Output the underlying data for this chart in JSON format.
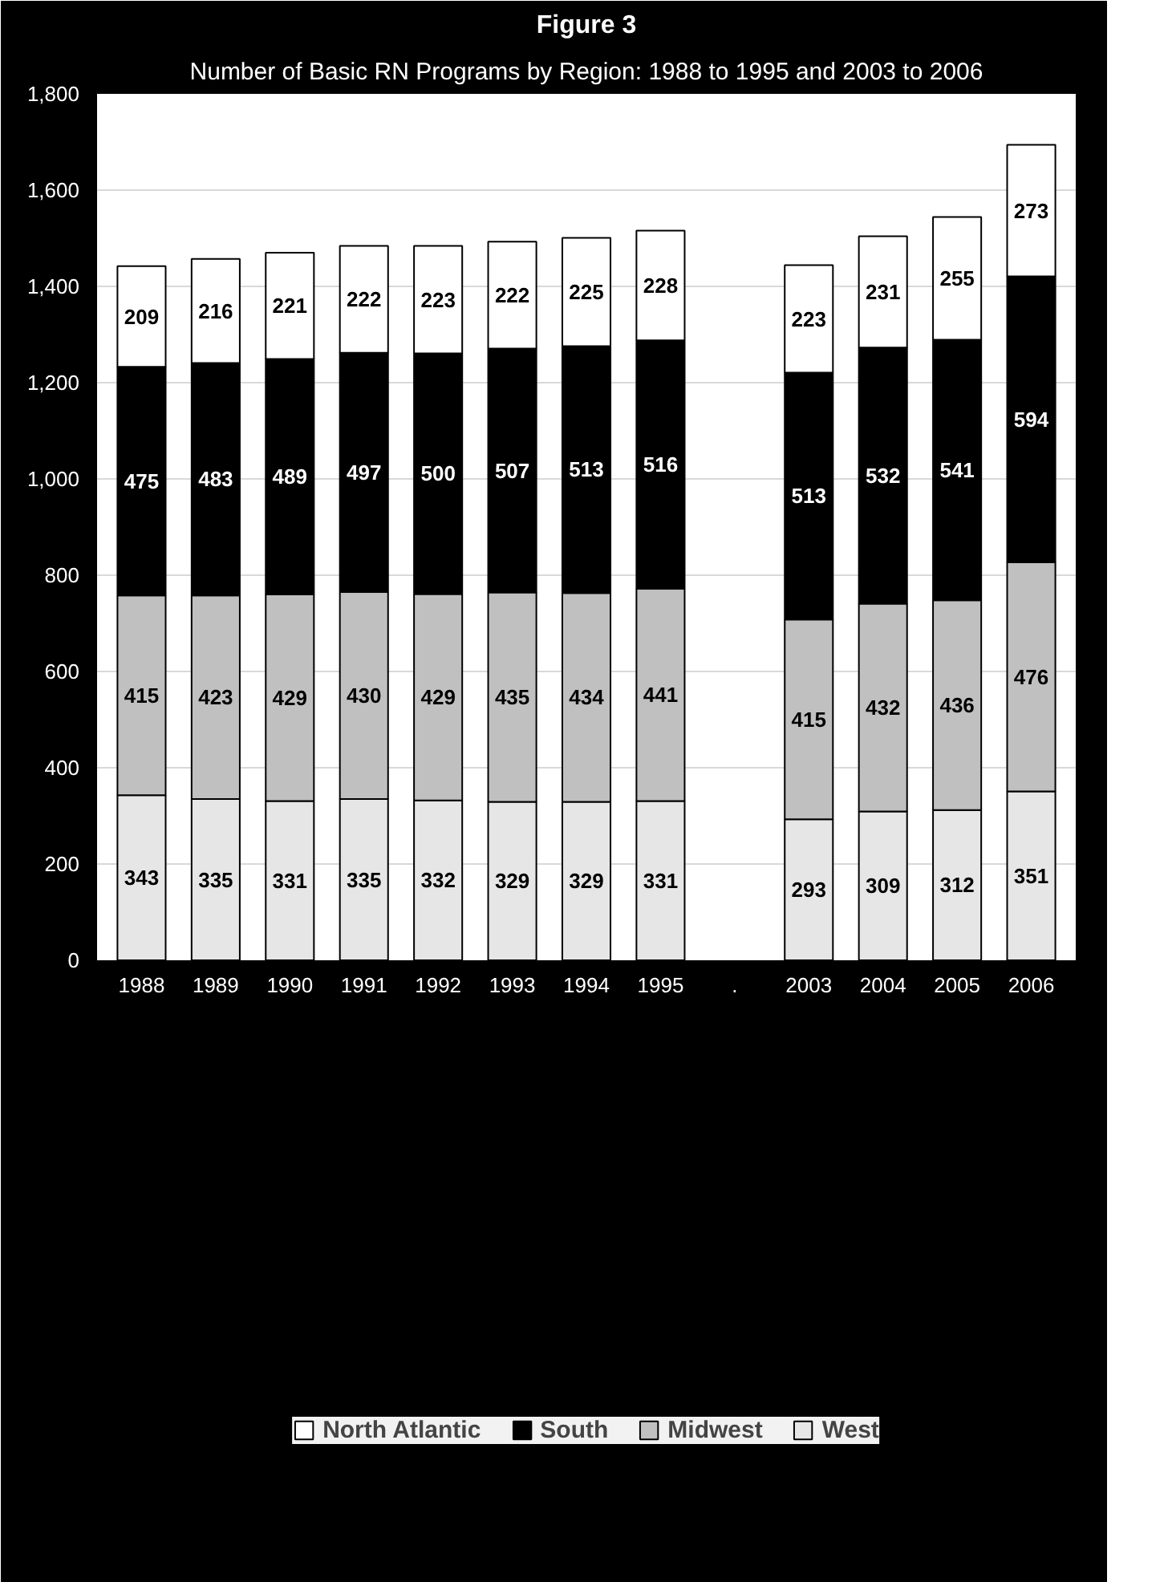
{
  "chart_data": {
    "type": "bar",
    "stacked": true,
    "title": "Figure 3",
    "subtitle": "Number of Basic RN Programs by Region: 1988 to 1995 and 2003 to 2006",
    "categories": [
      "1988",
      "1989",
      "1990",
      "1991",
      "1992",
      "1993",
      "1994",
      "1995",
      ".",
      "2003",
      "2004",
      "2005",
      "2006"
    ],
    "series": [
      {
        "name": "West",
        "color": "#e6e6e6",
        "values": [
          343,
          335,
          331,
          335,
          332,
          329,
          329,
          331,
          null,
          293,
          309,
          312,
          351
        ]
      },
      {
        "name": "Midwest",
        "color": "#c0c0c0",
        "values": [
          415,
          423,
          429,
          430,
          429,
          435,
          434,
          441,
          null,
          415,
          432,
          436,
          476
        ]
      },
      {
        "name": "South",
        "color": "#000000",
        "values": [
          475,
          483,
          489,
          497,
          500,
          507,
          513,
          516,
          null,
          513,
          532,
          541,
          594
        ]
      },
      {
        "name": "North Atlantic",
        "color": "#ffffff",
        "values": [
          209,
          216,
          221,
          222,
          223,
          222,
          225,
          228,
          null,
          223,
          231,
          255,
          273
        ]
      }
    ],
    "ylim": [
      0,
      1800
    ],
    "yticks": [
      0,
      200,
      400,
      600,
      800,
      {
        "value": 1000,
        "label": "1,000"
      },
      {
        "value": 1200,
        "label": "1,200"
      },
      {
        "value": 1400,
        "label": "1,400"
      },
      {
        "value": 1600,
        "label": "1,600"
      },
      {
        "value": 1800,
        "label": "1,800"
      }
    ],
    "grid": "y",
    "legend": "bottom",
    "data_labels": true
  }
}
